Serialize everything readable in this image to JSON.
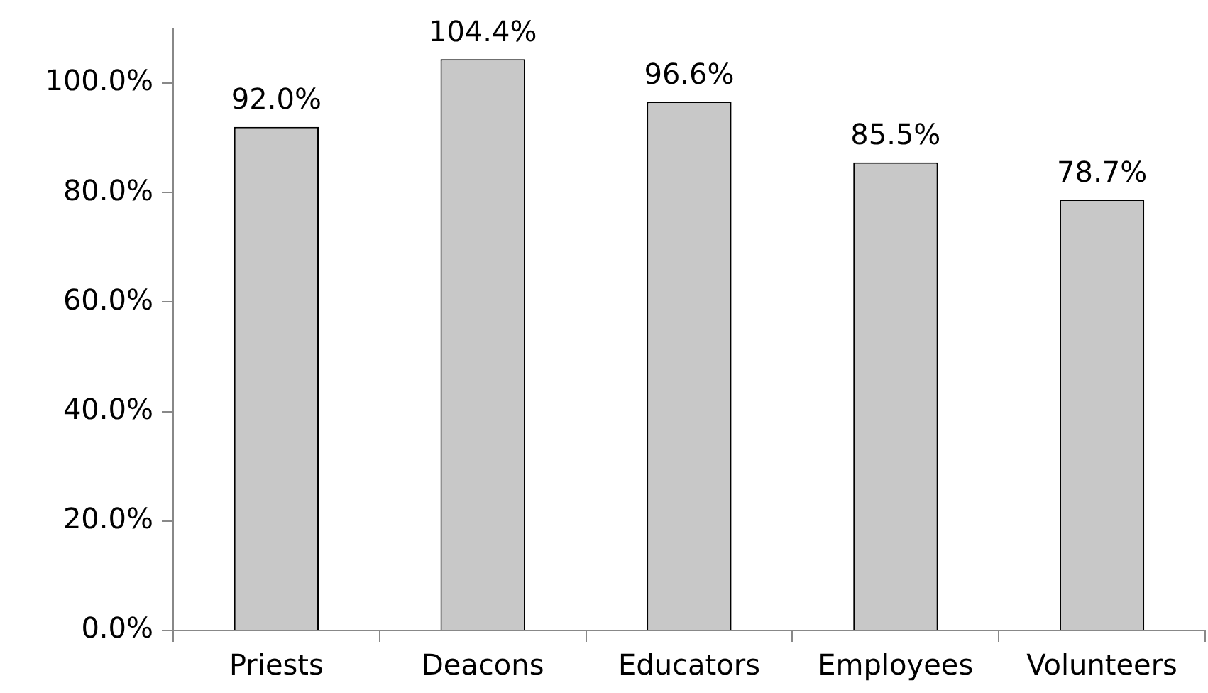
{
  "chart_data": {
    "type": "bar",
    "categories": [
      "Priests",
      "Deacons",
      "Educators",
      "Employees",
      "Volunteers"
    ],
    "values": [
      92.0,
      104.4,
      96.6,
      85.5,
      78.7
    ],
    "value_labels": [
      "92.0%",
      "104.4%",
      "96.6%",
      "85.5%",
      "78.7%"
    ],
    "color": "#c8c8c8",
    "ylim": [
      0,
      110
    ],
    "yticks": [
      {
        "value": 0,
        "label": "0.0%"
      },
      {
        "value": 20,
        "label": "20.0%"
      },
      {
        "value": 40,
        "label": "40.0%"
      },
      {
        "value": 60,
        "label": "60.0%"
      },
      {
        "value": 80,
        "label": "80.0%"
      },
      {
        "value": 100,
        "label": "100.0%"
      }
    ],
    "grid": false,
    "legend": false
  }
}
